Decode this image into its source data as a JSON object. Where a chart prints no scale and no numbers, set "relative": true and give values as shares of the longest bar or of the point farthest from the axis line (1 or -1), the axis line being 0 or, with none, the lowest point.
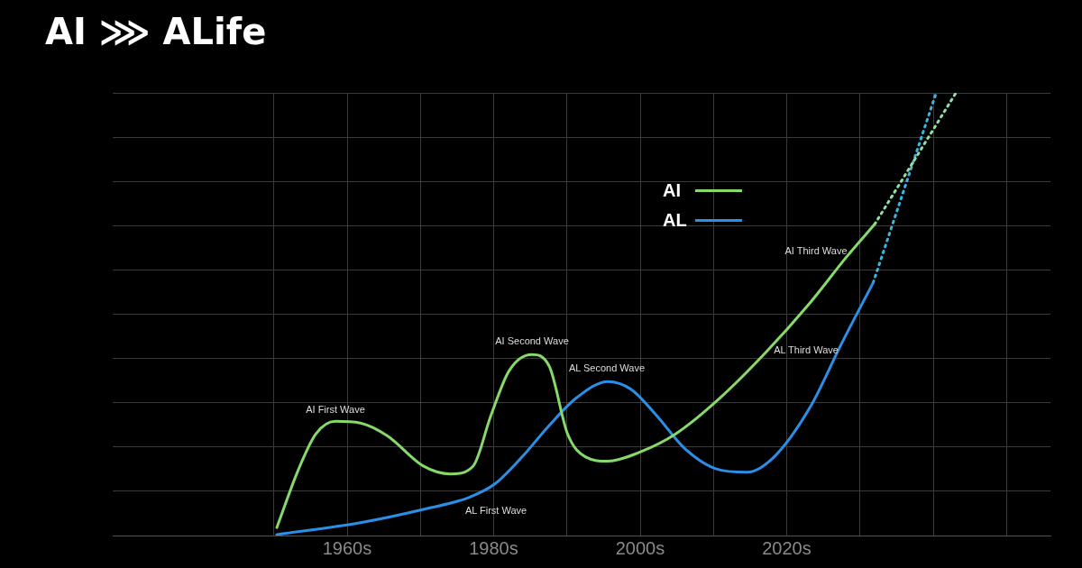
{
  "chart_data": {
    "type": "line",
    "title": "AI ⋙ ALife",
    "relative": true,
    "grid": true,
    "legend": "top right",
    "marker": "none",
    "xlim": [
      1928,
      2056
    ],
    "xticks": [
      {
        "value": 1950,
        "label": null
      },
      {
        "value": 1960,
        "label": "1960s"
      },
      {
        "value": 1970,
        "label": null
      },
      {
        "value": 1980,
        "label": "1980s"
      },
      {
        "value": 1990,
        "label": null
      },
      {
        "value": 2000,
        "label": "2000s"
      },
      {
        "value": 2010,
        "label": null
      },
      {
        "value": 2020,
        "label": "2020s"
      },
      {
        "value": 2030,
        "label": null
      },
      {
        "value": 2040,
        "label": null
      },
      {
        "value": 2050,
        "label": null
      }
    ],
    "series": [
      {
        "name": "AI",
        "color": "#86d96a",
        "line_style": "solid",
        "x": [
          1950.4,
          1953.3,
          1955.7,
          1958.4,
          1961.8,
          1965.5,
          1970.4,
          1974.1,
          1977.2,
          1979.6,
          1982.1,
          1985.2,
          1987.6,
          1990.1,
          1992.5,
          1995.6,
          1999.9,
          2004.8,
          2010.9,
          2017.1,
          2023.2,
          2028.1,
          2032.0
        ],
        "values": [
          0.018,
          0.147,
          0.229,
          0.258,
          0.254,
          0.225,
          0.157,
          0.139,
          0.157,
          0.27,
          0.372,
          0.409,
          0.382,
          0.229,
          0.178,
          0.168,
          0.188,
          0.229,
          0.311,
          0.413,
          0.526,
          0.628,
          0.703
        ]
      },
      {
        "name": "AL",
        "color": "#2a8fe6",
        "line_style": "solid",
        "x": [
          1950.4,
          1961.8,
          1970.4,
          1976.6,
          1980.2,
          1983.9,
          1987.6,
          1991.3,
          1995.6,
          1998.7,
          2002.3,
          2006.0,
          2010.3,
          2014.6,
          2018.3,
          2023.2,
          2027.5,
          2031.8
        ],
        "values": [
          0.002,
          0.029,
          0.059,
          0.086,
          0.117,
          0.178,
          0.249,
          0.311,
          0.348,
          0.331,
          0.27,
          0.198,
          0.151,
          0.143,
          0.178,
          0.29,
          0.434,
          0.571
        ]
      },
      {
        "color": "#8fe0a8",
        "line_style": "dotted",
        "x": [
          2032.0,
          2043.1
        ],
        "values": [
          0.703,
          1.0
        ]
      },
      {
        "color": "#3ab6e0",
        "line_style": "dotted",
        "x": [
          2031.8,
          2040.4
        ],
        "values": [
          0.571,
          1.0
        ]
      }
    ],
    "annotations": [
      "AI First Wave",
      "AI Second Wave",
      "AL Second Wave",
      "AL First Wave",
      "AI Third Wave",
      "AL Third Wave"
    ]
  }
}
